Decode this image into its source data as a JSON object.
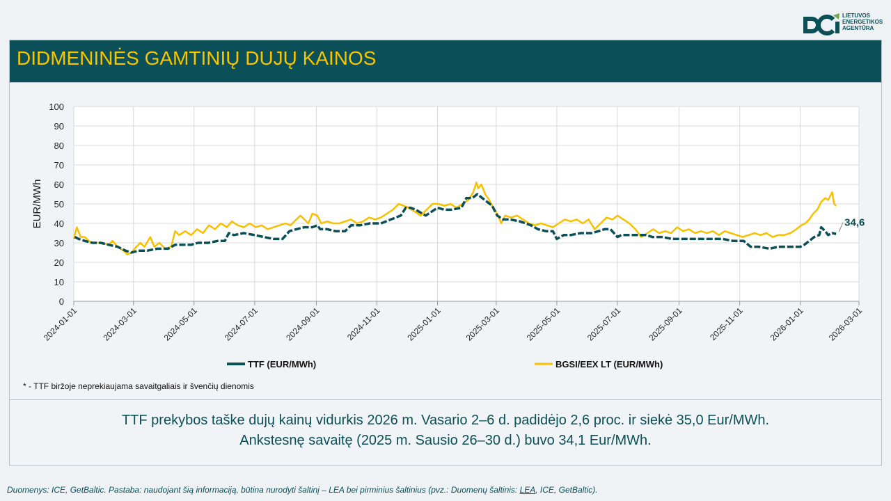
{
  "logo": {
    "name": "logo-mark",
    "line1": "LIETUVOS",
    "line2": "ENERGETIKOS",
    "line3": "AGENTŪRA",
    "color": "#0b4f57"
  },
  "header": {
    "title": "DIDMENINĖS GAMTINIŲ DUJŲ KAINOS"
  },
  "footnote": "* - TTF biržoje neprekiaujama savaitgaliais ir švenčių dienomis",
  "summary": {
    "line1": "TTF prekybos taške dujų kainų vidurkis 2026 m. Vasario 2–6 d. padidėjo 2,6 proc. ir siekė 35,0 Eur/MWh.",
    "line2": "Ankstesnę savaitę (2025 m. Sausio 26–30 d.) buvo 34,1 Eur/MWh."
  },
  "source": {
    "prefix": "Duomenys: ICE, GetBaltic. Pastaba: naudojant šią informaciją, būtina nurodyti šaltinį – LEA bei pirminius šaltinius (pvz.: Duomenų šaltinis: ",
    "link": "LEA",
    "suffix": ", ICE, GetBaltic)."
  },
  "colors": {
    "ttf": "#0b4f57",
    "bgsi": "#f7c000",
    "header_bg": "#0b5058",
    "title": "#f7c400"
  },
  "chart_data": {
    "type": "line",
    "ylabel": "EUR/MWh",
    "ylim": [
      0,
      100
    ],
    "yticks": [
      0,
      10,
      20,
      30,
      40,
      50,
      60,
      70,
      80,
      90,
      100
    ],
    "xlim": [
      "2024-01-01",
      "2026-03-01"
    ],
    "xticks": [
      "2024-01-01",
      "2024-03-01",
      "2024-05-01",
      "2024-07-01",
      "2024-09-01",
      "2024-11-01",
      "2025-01-01",
      "2025-03-01",
      "2025-05-01",
      "2025-07-01",
      "2025-09-01",
      "2025-11-01",
      "2026-01-01",
      "2026-03-01"
    ],
    "last_label": "34,6",
    "series": [
      {
        "name": "TTF (EUR/MWh)",
        "style": "dashed",
        "points": [
          [
            "2024-01-02",
            33
          ],
          [
            "2024-01-06",
            32
          ],
          [
            "2024-01-12",
            31
          ],
          [
            "2024-01-20",
            30
          ],
          [
            "2024-01-28",
            30
          ],
          [
            "2024-02-05",
            29
          ],
          [
            "2024-02-14",
            28
          ],
          [
            "2024-02-22",
            26
          ],
          [
            "2024-02-28",
            25
          ],
          [
            "2024-03-06",
            26
          ],
          [
            "2024-03-15",
            26
          ],
          [
            "2024-03-25",
            27
          ],
          [
            "2024-04-05",
            27
          ],
          [
            "2024-04-12",
            29
          ],
          [
            "2024-04-20",
            29
          ],
          [
            "2024-04-28",
            29
          ],
          [
            "2024-05-05",
            30
          ],
          [
            "2024-05-15",
            30
          ],
          [
            "2024-05-25",
            31
          ],
          [
            "2024-06-01",
            31
          ],
          [
            "2024-06-05",
            35
          ],
          [
            "2024-06-10",
            34
          ],
          [
            "2024-06-20",
            35
          ],
          [
            "2024-07-01",
            34
          ],
          [
            "2024-07-10",
            33
          ],
          [
            "2024-07-20",
            32
          ],
          [
            "2024-07-29",
            32
          ],
          [
            "2024-08-05",
            36
          ],
          [
            "2024-08-12",
            37
          ],
          [
            "2024-08-20",
            38
          ],
          [
            "2024-08-28",
            38
          ],
          [
            "2024-09-02",
            39
          ],
          [
            "2024-09-05",
            37
          ],
          [
            "2024-09-12",
            37
          ],
          [
            "2024-09-20",
            36
          ],
          [
            "2024-09-30",
            36
          ],
          [
            "2024-10-06",
            39
          ],
          [
            "2024-10-15",
            39
          ],
          [
            "2024-10-25",
            40
          ],
          [
            "2024-11-05",
            40
          ],
          [
            "2024-11-15",
            42
          ],
          [
            "2024-11-25",
            44
          ],
          [
            "2024-11-30",
            48
          ],
          [
            "2024-12-05",
            48
          ],
          [
            "2024-12-10",
            47
          ],
          [
            "2024-12-20",
            44
          ],
          [
            "2025-01-01",
            48
          ],
          [
            "2025-01-08",
            47
          ],
          [
            "2025-01-15",
            47
          ],
          [
            "2025-01-25",
            48
          ],
          [
            "2025-01-30",
            53
          ],
          [
            "2025-02-05",
            53
          ],
          [
            "2025-02-10",
            55
          ],
          [
            "2025-02-15",
            53
          ],
          [
            "2025-02-20",
            51
          ],
          [
            "2025-02-25",
            49
          ],
          [
            "2025-03-02",
            44
          ],
          [
            "2025-03-08",
            42
          ],
          [
            "2025-03-15",
            42
          ],
          [
            "2025-03-25",
            41
          ],
          [
            "2025-04-05",
            39
          ],
          [
            "2025-04-12",
            37
          ],
          [
            "2025-04-20",
            36
          ],
          [
            "2025-04-27",
            36
          ],
          [
            "2025-05-01",
            32
          ],
          [
            "2025-05-08",
            34
          ],
          [
            "2025-05-15",
            34
          ],
          [
            "2025-05-25",
            35
          ],
          [
            "2025-06-05",
            35
          ],
          [
            "2025-06-12",
            36
          ],
          [
            "2025-06-18",
            37
          ],
          [
            "2025-06-24",
            37
          ],
          [
            "2025-07-01",
            33
          ],
          [
            "2025-07-05",
            34
          ],
          [
            "2025-07-12",
            34
          ],
          [
            "2025-07-20",
            34
          ],
          [
            "2025-07-30",
            34
          ],
          [
            "2025-08-05",
            33
          ],
          [
            "2025-08-15",
            33
          ],
          [
            "2025-08-25",
            32
          ],
          [
            "2025-09-05",
            32
          ],
          [
            "2025-09-15",
            32
          ],
          [
            "2025-09-25",
            32
          ],
          [
            "2025-10-05",
            32
          ],
          [
            "2025-10-15",
            32
          ],
          [
            "2025-10-25",
            31
          ],
          [
            "2025-11-05",
            31
          ],
          [
            "2025-11-12",
            28
          ],
          [
            "2025-11-20",
            28
          ],
          [
            "2025-12-01",
            27
          ],
          [
            "2025-12-10",
            28
          ],
          [
            "2025-12-20",
            28
          ],
          [
            "2026-01-01",
            28
          ],
          [
            "2026-01-05",
            29
          ],
          [
            "2026-01-10",
            31
          ],
          [
            "2026-01-15",
            33
          ],
          [
            "2026-01-20",
            34
          ],
          [
            "2026-01-22",
            38
          ],
          [
            "2026-01-26",
            36
          ],
          [
            "2026-01-29",
            34
          ],
          [
            "2026-02-02",
            35
          ],
          [
            "2026-02-06",
            34.6
          ]
        ]
      },
      {
        "name": "BGSI/EEX LT (EUR/MWh)",
        "style": "solid",
        "points": [
          [
            "2024-01-01",
            32
          ],
          [
            "2024-01-04",
            38
          ],
          [
            "2024-01-08",
            33
          ],
          [
            "2024-01-12",
            33
          ],
          [
            "2024-01-18",
            30
          ],
          [
            "2024-01-24",
            30
          ],
          [
            "2024-01-30",
            30
          ],
          [
            "2024-02-05",
            29
          ],
          [
            "2024-02-09",
            31
          ],
          [
            "2024-02-14",
            28
          ],
          [
            "2024-02-20",
            26
          ],
          [
            "2024-02-24",
            24
          ],
          [
            "2024-02-28",
            25
          ],
          [
            "2024-03-04",
            28
          ],
          [
            "2024-03-08",
            30
          ],
          [
            "2024-03-12",
            28
          ],
          [
            "2024-03-18",
            33
          ],
          [
            "2024-03-22",
            28
          ],
          [
            "2024-03-27",
            30
          ],
          [
            "2024-04-02",
            27
          ],
          [
            "2024-04-08",
            28
          ],
          [
            "2024-04-12",
            36
          ],
          [
            "2024-04-16",
            34
          ],
          [
            "2024-04-22",
            36
          ],
          [
            "2024-04-28",
            34
          ],
          [
            "2024-05-04",
            37
          ],
          [
            "2024-05-10",
            35
          ],
          [
            "2024-05-16",
            39
          ],
          [
            "2024-05-22",
            37
          ],
          [
            "2024-05-28",
            40
          ],
          [
            "2024-06-03",
            38
          ],
          [
            "2024-06-08",
            41
          ],
          [
            "2024-06-14",
            39
          ],
          [
            "2024-06-20",
            38
          ],
          [
            "2024-06-26",
            40
          ],
          [
            "2024-07-02",
            38
          ],
          [
            "2024-07-08",
            39
          ],
          [
            "2024-07-14",
            37
          ],
          [
            "2024-07-20",
            38
          ],
          [
            "2024-07-26",
            39
          ],
          [
            "2024-08-01",
            40
          ],
          [
            "2024-08-06",
            39
          ],
          [
            "2024-08-12",
            42
          ],
          [
            "2024-08-16",
            44
          ],
          [
            "2024-08-20",
            42
          ],
          [
            "2024-08-24",
            40
          ],
          [
            "2024-08-28",
            45
          ],
          [
            "2024-09-02",
            44
          ],
          [
            "2024-09-06",
            40
          ],
          [
            "2024-09-12",
            41
          ],
          [
            "2024-09-18",
            40
          ],
          [
            "2024-09-24",
            40
          ],
          [
            "2024-09-30",
            41
          ],
          [
            "2024-10-06",
            42
          ],
          [
            "2024-10-12",
            40
          ],
          [
            "2024-10-18",
            41
          ],
          [
            "2024-10-24",
            43
          ],
          [
            "2024-10-30",
            42
          ],
          [
            "2024-11-05",
            43
          ],
          [
            "2024-11-11",
            45
          ],
          [
            "2024-11-17",
            47
          ],
          [
            "2024-11-23",
            50
          ],
          [
            "2024-11-28",
            49
          ],
          [
            "2024-12-03",
            48
          ],
          [
            "2024-12-09",
            46
          ],
          [
            "2024-12-15",
            44
          ],
          [
            "2024-12-21",
            47
          ],
          [
            "2024-12-27",
            50
          ],
          [
            "2025-01-02",
            50
          ],
          [
            "2025-01-08",
            49
          ],
          [
            "2025-01-14",
            50
          ],
          [
            "2025-01-20",
            48
          ],
          [
            "2025-01-26",
            50
          ],
          [
            "2025-02-01",
            52
          ],
          [
            "2025-02-06",
            56
          ],
          [
            "2025-02-09",
            61
          ],
          [
            "2025-02-11",
            58
          ],
          [
            "2025-02-14",
            60
          ],
          [
            "2025-02-18",
            55
          ],
          [
            "2025-02-22",
            52
          ],
          [
            "2025-02-26",
            48
          ],
          [
            "2025-03-02",
            45
          ],
          [
            "2025-03-06",
            40
          ],
          [
            "2025-03-10",
            44
          ],
          [
            "2025-03-16",
            43
          ],
          [
            "2025-03-22",
            44
          ],
          [
            "2025-03-28",
            42
          ],
          [
            "2025-04-03",
            40
          ],
          [
            "2025-04-09",
            39
          ],
          [
            "2025-04-15",
            40
          ],
          [
            "2025-04-21",
            39
          ],
          [
            "2025-04-27",
            38
          ],
          [
            "2025-05-03",
            40
          ],
          [
            "2025-05-09",
            42
          ],
          [
            "2025-05-15",
            41
          ],
          [
            "2025-05-21",
            42
          ],
          [
            "2025-05-27",
            40
          ],
          [
            "2025-06-02",
            42
          ],
          [
            "2025-06-08",
            37
          ],
          [
            "2025-06-14",
            40
          ],
          [
            "2025-06-20",
            43
          ],
          [
            "2025-06-26",
            42
          ],
          [
            "2025-07-01",
            44
          ],
          [
            "2025-07-07",
            42
          ],
          [
            "2025-07-13",
            40
          ],
          [
            "2025-07-19",
            37
          ],
          [
            "2025-07-25",
            33
          ],
          [
            "2025-07-31",
            35
          ],
          [
            "2025-08-06",
            37
          ],
          [
            "2025-08-12",
            35
          ],
          [
            "2025-08-18",
            36
          ],
          [
            "2025-08-24",
            35
          ],
          [
            "2025-08-30",
            38
          ],
          [
            "2025-09-05",
            36
          ],
          [
            "2025-09-11",
            37
          ],
          [
            "2025-09-17",
            35
          ],
          [
            "2025-09-23",
            36
          ],
          [
            "2025-09-29",
            35
          ],
          [
            "2025-10-05",
            36
          ],
          [
            "2025-10-11",
            34
          ],
          [
            "2025-10-17",
            36
          ],
          [
            "2025-10-23",
            35
          ],
          [
            "2025-10-29",
            34
          ],
          [
            "2025-11-04",
            33
          ],
          [
            "2025-11-10",
            34
          ],
          [
            "2025-11-16",
            35
          ],
          [
            "2025-11-22",
            34
          ],
          [
            "2025-11-28",
            35
          ],
          [
            "2025-12-04",
            33
          ],
          [
            "2025-12-10",
            34
          ],
          [
            "2025-12-16",
            34
          ],
          [
            "2025-12-22",
            35
          ],
          [
            "2025-12-28",
            37
          ],
          [
            "2026-01-02",
            39
          ],
          [
            "2026-01-06",
            40
          ],
          [
            "2026-01-10",
            42
          ],
          [
            "2026-01-14",
            45
          ],
          [
            "2026-01-18",
            47
          ],
          [
            "2026-01-22",
            51
          ],
          [
            "2026-01-26",
            53
          ],
          [
            "2026-01-29",
            52
          ],
          [
            "2026-02-02",
            56
          ],
          [
            "2026-02-04",
            50
          ],
          [
            "2026-02-06",
            49
          ]
        ]
      }
    ]
  }
}
